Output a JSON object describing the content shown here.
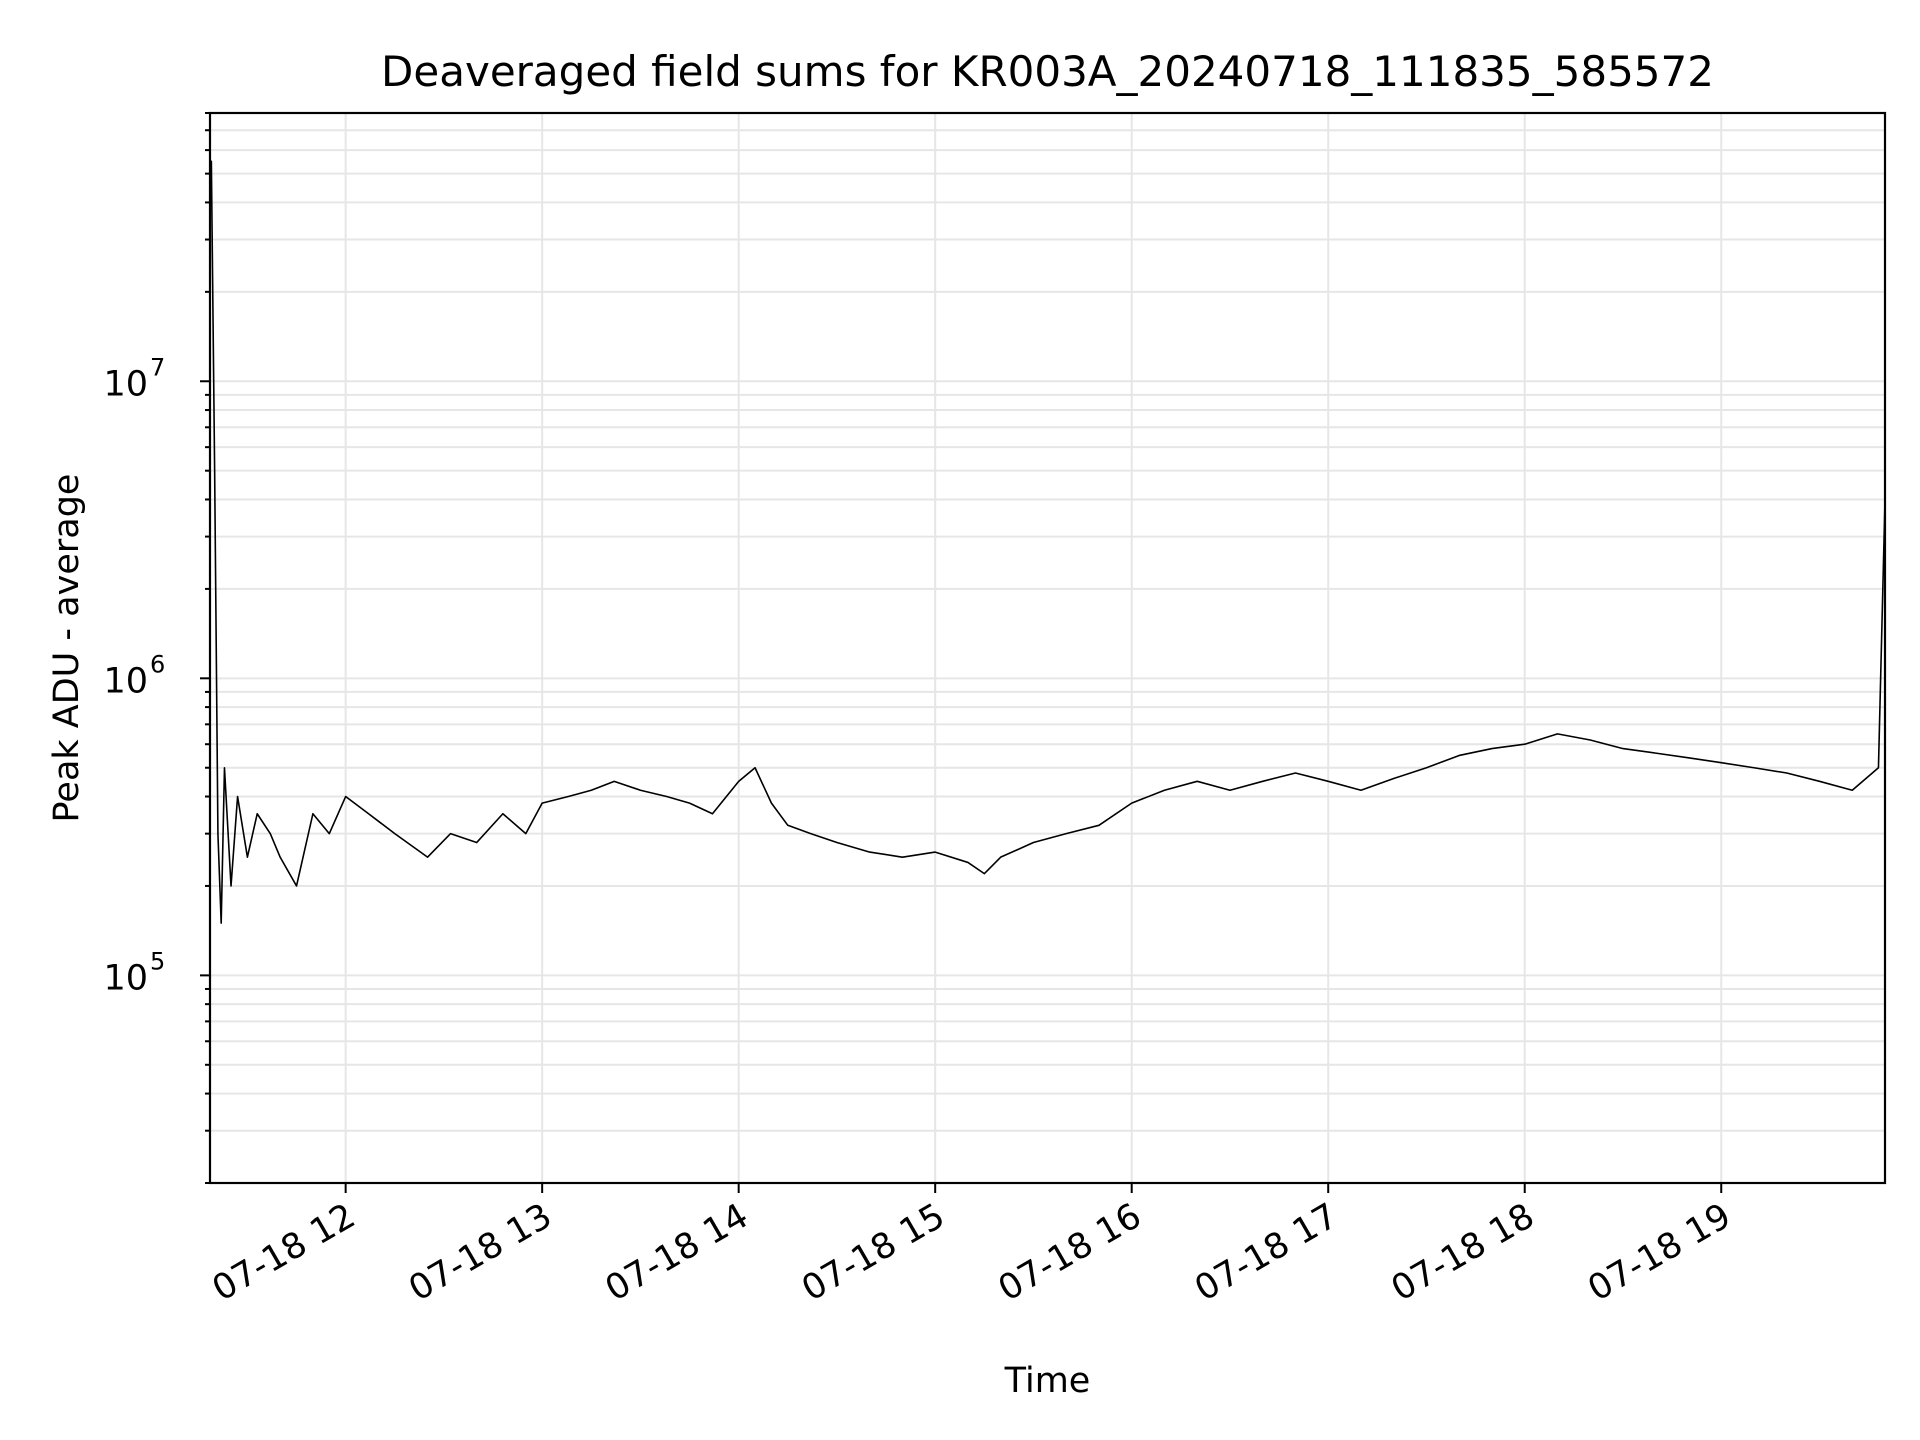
{
  "chart_data": {
    "type": "line",
    "title": "Deaveraged field sums for KR003A_20240718_111835_585572",
    "xlabel": "Time",
    "ylabel": "Peak ADU - average",
    "yscale": "log",
    "grid": true,
    "grid_minor_y": true,
    "line_color": "#000000",
    "grid_color": "#e6e6e6",
    "xlim": [
      "2024-07-18 11:18:35",
      "2024-07-18 19:50:00"
    ],
    "ylim": [
      20000,
      80000000
    ],
    "x_ticks": [
      {
        "value": "2024-07-18 12:00",
        "label": "07-18 12"
      },
      {
        "value": "2024-07-18 13:00",
        "label": "07-18 13"
      },
      {
        "value": "2024-07-18 14:00",
        "label": "07-18 14"
      },
      {
        "value": "2024-07-18 15:00",
        "label": "07-18 15"
      },
      {
        "value": "2024-07-18 16:00",
        "label": "07-18 16"
      },
      {
        "value": "2024-07-18 17:00",
        "label": "07-18 17"
      },
      {
        "value": "2024-07-18 18:00",
        "label": "07-18 18"
      },
      {
        "value": "2024-07-18 19:00",
        "label": "07-18 19"
      }
    ],
    "y_ticks": [
      {
        "value": 100000,
        "base": "10",
        "exp": "5"
      },
      {
        "value": 1000000,
        "base": "10",
        "exp": "6"
      },
      {
        "value": 10000000,
        "base": "10",
        "exp": "7"
      }
    ],
    "series": [
      {
        "x": [
          "2024-07-18 11:18:35",
          "2024-07-18 11:19:00",
          "2024-07-18 11:20:00",
          "2024-07-18 11:21:00",
          "2024-07-18 11:22:00",
          "2024-07-18 11:23:00",
          "2024-07-18 11:25:00",
          "2024-07-18 11:27:00",
          "2024-07-18 11:30:00",
          "2024-07-18 11:33:00",
          "2024-07-18 11:37:00",
          "2024-07-18 11:40:00",
          "2024-07-18 11:45:00",
          "2024-07-18 11:50:00",
          "2024-07-18 11:55:00",
          "2024-07-18 12:00:00",
          "2024-07-18 12:07:00",
          "2024-07-18 12:15:00",
          "2024-07-18 12:25:00",
          "2024-07-18 12:32:00",
          "2024-07-18 12:40:00",
          "2024-07-18 12:48:00",
          "2024-07-18 12:55:00",
          "2024-07-18 13:00:00",
          "2024-07-18 13:08:00",
          "2024-07-18 13:15:00",
          "2024-07-18 13:22:00",
          "2024-07-18 13:30:00",
          "2024-07-18 13:38:00",
          "2024-07-18 13:45:00",
          "2024-07-18 13:52:00",
          "2024-07-18 14:00:00",
          "2024-07-18 14:05:00",
          "2024-07-18 14:10:00",
          "2024-07-18 14:15:00",
          "2024-07-18 14:22:00",
          "2024-07-18 14:30:00",
          "2024-07-18 14:40:00",
          "2024-07-18 14:50:00",
          "2024-07-18 15:00:00",
          "2024-07-18 15:10:00",
          "2024-07-18 15:15:00",
          "2024-07-18 15:20:00",
          "2024-07-18 15:30:00",
          "2024-07-18 15:40:00",
          "2024-07-18 15:50:00",
          "2024-07-18 16:00:00",
          "2024-07-18 16:10:00",
          "2024-07-18 16:20:00",
          "2024-07-18 16:30:00",
          "2024-07-18 16:40:00",
          "2024-07-18 16:50:00",
          "2024-07-18 17:00:00",
          "2024-07-18 17:10:00",
          "2024-07-18 17:20:00",
          "2024-07-18 17:30:00",
          "2024-07-18 17:40:00",
          "2024-07-18 17:50:00",
          "2024-07-18 18:00:00",
          "2024-07-18 18:10:00",
          "2024-07-18 18:20:00",
          "2024-07-18 18:30:00",
          "2024-07-18 18:40:00",
          "2024-07-18 18:50:00",
          "2024-07-18 19:00:00",
          "2024-07-18 19:10:00",
          "2024-07-18 19:20:00",
          "2024-07-18 19:30:00",
          "2024-07-18 19:40:00",
          "2024-07-18 19:48:00",
          "2024-07-18 19:50:00"
        ],
        "y": [
          50000000,
          55000000,
          5000000,
          300000,
          150000,
          500000,
          200000,
          400000,
          250000,
          350000,
          300000,
          250000,
          200000,
          350000,
          300000,
          400000,
          350000,
          300000,
          250000,
          300000,
          280000,
          350000,
          300000,
          380000,
          400000,
          420000,
          450000,
          420000,
          400000,
          380000,
          350000,
          450000,
          500000,
          380000,
          320000,
          300000,
          280000,
          260000,
          250000,
          260000,
          240000,
          220000,
          250000,
          280000,
          300000,
          320000,
          380000,
          420000,
          450000,
          420000,
          450000,
          480000,
          450000,
          420000,
          460000,
          500000,
          550000,
          580000,
          600000,
          650000,
          620000,
          580000,
          560000,
          540000,
          520000,
          500000,
          480000,
          450000,
          420000,
          500000,
          4000000
        ]
      }
    ]
  }
}
